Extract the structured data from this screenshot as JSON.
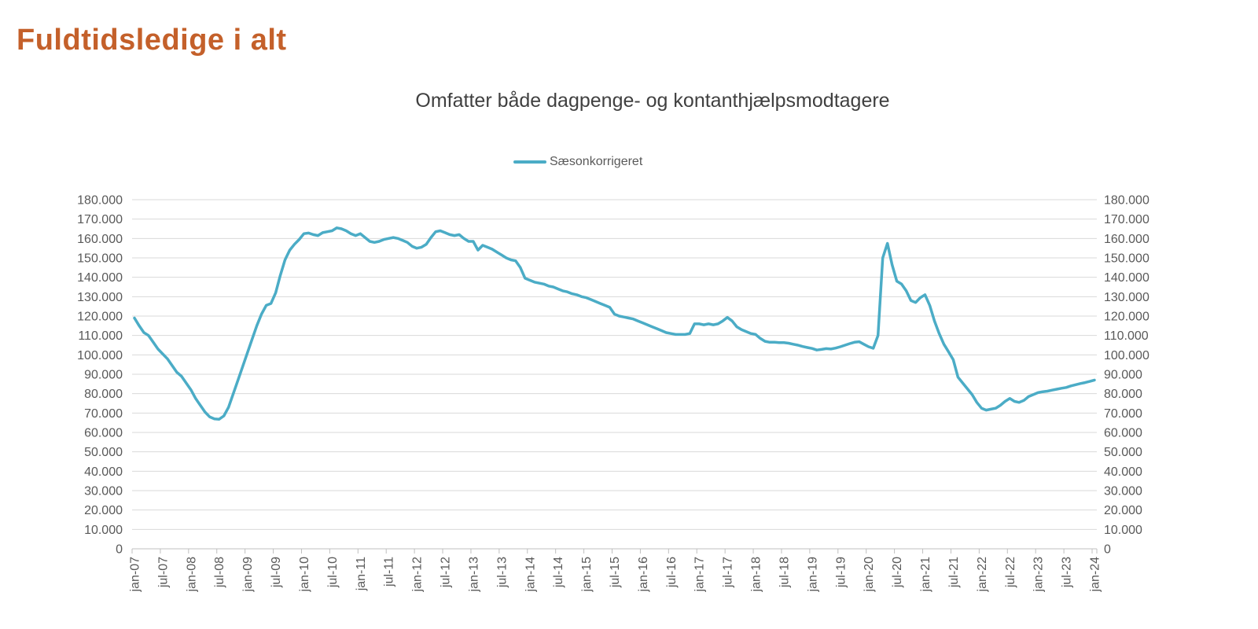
{
  "header": {
    "title": "Fuldtidsledige i alt"
  },
  "chart": {
    "subtitle": "Omfatter både dagpenge- og kontanthjælpsmodtagere",
    "legend_label": "Sæsonkorrigeret"
  },
  "colors": {
    "title": "#C4602A",
    "subtitle": "#404040",
    "series_line": "#4BACC6",
    "axis_text": "#595959",
    "gridline": "#D9D9D9",
    "axis_line": "#BFBFBF",
    "background": "#FFFFFF"
  },
  "chart_data": {
    "type": "line",
    "title": "Omfatter både dagpenge- og kontanthjælpsmodtagere",
    "legend_entries": [
      "Sæsonkorrigeret"
    ],
    "legend_position": "top-center",
    "grid": "horizontal",
    "x_frequency": "monthly",
    "x_start": "jan-07",
    "x_end": "jan-24",
    "x_axis_labels": [
      "jan-07",
      "jul-07",
      "jan-08",
      "jul-08",
      "jan-09",
      "jul-09",
      "jan-10",
      "jul-10",
      "jan-11",
      "jul-11",
      "jan-12",
      "jul-12",
      "jan-13",
      "jul-13",
      "jan-14",
      "jul-14",
      "jan-15",
      "jul-15",
      "jan-16",
      "jul-16",
      "jan-17",
      "jul-17",
      "jan-18",
      "jul-18",
      "jan-19",
      "jul-19",
      "jan-20",
      "jul-20",
      "jan-21",
      "jul-21",
      "jan-22",
      "jul-22",
      "jan-23",
      "jul-23",
      "jan-24"
    ],
    "x_label_interval_months": 6,
    "ylim": [
      0,
      180000
    ],
    "ytick_step": 10000,
    "y_axis_sides": "both",
    "y_tick_label_format": "thousands-dot-separator",
    "series": [
      {
        "name": "Sæsonkorrigeret",
        "color": "#4BACC6",
        "values": [
          119000,
          115000,
          111500,
          110000,
          106500,
          103000,
          100500,
          98000,
          94500,
          91000,
          89000,
          85500,
          82000,
          77500,
          74000,
          70500,
          68000,
          67000,
          66800,
          68500,
          73000,
          80000,
          87000,
          94000,
          101000,
          108000,
          115000,
          121000,
          125500,
          126500,
          132000,
          141000,
          149000,
          154000,
          157000,
          159500,
          162500,
          162800,
          162000,
          161500,
          163000,
          163500,
          164000,
          165500,
          165000,
          164000,
          162500,
          161500,
          162500,
          160500,
          158500,
          158000,
          158500,
          159500,
          160000,
          160500,
          160000,
          159000,
          158000,
          156000,
          155000,
          155500,
          157000,
          160500,
          163500,
          164000,
          163000,
          162000,
          161500,
          162000,
          160000,
          158500,
          158500,
          154000,
          156500,
          155500,
          154500,
          153000,
          151500,
          150000,
          149000,
          148500,
          145000,
          139500,
          138500,
          137500,
          137000,
          136500,
          135500,
          135000,
          134000,
          133000,
          132500,
          131500,
          131000,
          130000,
          129500,
          128500,
          127500,
          126500,
          125500,
          124500,
          121000,
          120000,
          119500,
          119000,
          118500,
          117500,
          116500,
          115500,
          114500,
          113500,
          112500,
          111500,
          111000,
          110500,
          110500,
          110500,
          111000,
          116000,
          116000,
          115500,
          116000,
          115500,
          116000,
          117500,
          119300,
          117500,
          114500,
          113000,
          112000,
          111000,
          110500,
          108500,
          107000,
          106500,
          106500,
          106300,
          106300,
          106000,
          105500,
          105000,
          104300,
          103800,
          103300,
          102500,
          102800,
          103200,
          103000,
          103500,
          104200,
          105000,
          105800,
          106500,
          106800,
          105500,
          104200,
          103400,
          110000,
          150000,
          157500,
          146500,
          138000,
          136500,
          133000,
          128000,
          127000,
          129500,
          131000,
          125500,
          117500,
          111000,
          105500,
          101500,
          97500,
          88500,
          85500,
          82500,
          79500,
          75500,
          72500,
          71500,
          72000,
          72500,
          74000,
          76000,
          77500,
          76000,
          75500,
          76500,
          78500,
          79500,
          80500,
          81000,
          81300,
          81800,
          82300,
          82800,
          83200,
          84000,
          84600,
          85200,
          85700,
          86300,
          87000
        ]
      }
    ]
  }
}
